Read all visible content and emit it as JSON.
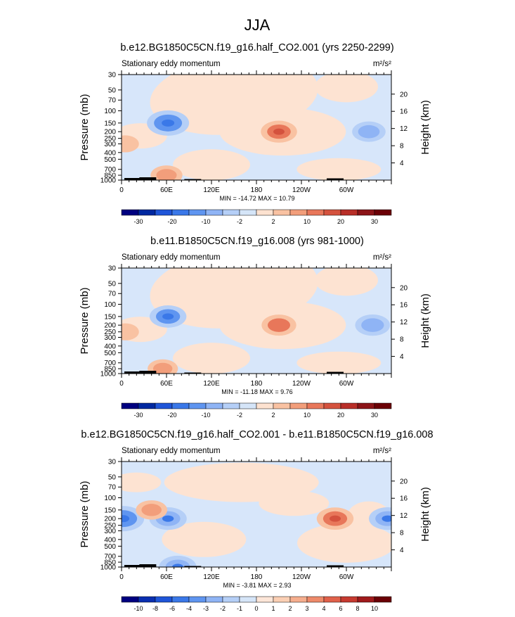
{
  "page_title": "JJA",
  "chart_data": [
    {
      "type": "heatmap",
      "title": "b.e12.BG1850C5CN.f19_g16.half_CO2.001 (yrs 2250-2299)",
      "subtitle": "Stationary eddy momentum",
      "units": "m²/s²",
      "ylabel": "Pressure (mb)",
      "ylabel_right": "Height (km)",
      "x_ticks": [
        "0",
        "60E",
        "120E",
        "180",
        "120W",
        "60W"
      ],
      "y_ticks": [
        "30",
        "50",
        "70",
        "100",
        "150",
        "200",
        "250",
        "300",
        "400",
        "500",
        "700",
        "850",
        "1000"
      ],
      "y_ticks_right": [
        "20",
        "16",
        "12",
        "8",
        "4"
      ],
      "stats_text": "MIN = -14.72  MAX =  10.79",
      "colorbar_labels": [
        "-30",
        "-20",
        "-10",
        "-2",
        "2",
        "10",
        "20",
        "30"
      ],
      "features": [
        {
          "lon": 62,
          "p": 150,
          "value": -14.7
        },
        {
          "lon": 330,
          "p": 200,
          "value": -9
        },
        {
          "lon": 210,
          "p": 200,
          "value": 10.8
        },
        {
          "lon": 5,
          "p": 300,
          "value": 5
        },
        {
          "lon": 60,
          "p": 850,
          "value": 8
        }
      ]
    },
    {
      "type": "heatmap",
      "title": "b.e11.B1850C5CN.f19_g16.008 (yrs 981-1000)",
      "subtitle": "Stationary eddy momentum",
      "units": "m²/s²",
      "ylabel": "Pressure (mb)",
      "ylabel_right": "Height (km)",
      "x_ticks": [
        "0",
        "60E",
        "120E",
        "180",
        "120W",
        "60W"
      ],
      "y_ticks": [
        "30",
        "50",
        "70",
        "100",
        "150",
        "200",
        "250",
        "300",
        "400",
        "500",
        "700",
        "850",
        "1000"
      ],
      "y_ticks_right": [
        "20",
        "16",
        "12",
        "8",
        "4"
      ],
      "stats_text": "MIN = -11.18  MAX =   9.76",
      "colorbar_labels": [
        "-30",
        "-20",
        "-10",
        "-2",
        "2",
        "10",
        "20",
        "30"
      ],
      "features": [
        {
          "lon": 62,
          "p": 150,
          "value": -11.2
        },
        {
          "lon": 335,
          "p": 200,
          "value": -10
        },
        {
          "lon": 210,
          "p": 200,
          "value": 9.8
        },
        {
          "lon": 5,
          "p": 250,
          "value": 5
        },
        {
          "lon": 55,
          "p": 850,
          "value": 7
        }
      ]
    },
    {
      "type": "heatmap",
      "title": "b.e12.BG1850C5CN.f19_g16.half_CO2.001 - b.e11.B1850C5CN.f19_g16.008",
      "subtitle": "Stationary eddy momentum",
      "units": "m²/s²",
      "ylabel": "Pressure (mb)",
      "ylabel_right": "Height (km)",
      "x_ticks": [
        "0",
        "60E",
        "120E",
        "180",
        "120W",
        "60W"
      ],
      "y_ticks": [
        "30",
        "50",
        "70",
        "100",
        "150",
        "200",
        "250",
        "300",
        "400",
        "500",
        "700",
        "850",
        "1000"
      ],
      "y_ticks_right": [
        "20",
        "16",
        "12",
        "8",
        "4"
      ],
      "stats_text": "MIN =  -3.81  MAX =   2.93",
      "colorbar_labels": [
        "-10",
        "-8",
        "-6",
        "-4",
        "-3",
        "-2",
        "-1",
        "0",
        "1",
        "2",
        "3",
        "4",
        "6",
        "8",
        "10"
      ],
      "features": [
        {
          "lon": 2,
          "p": 200,
          "value": -3.8
        },
        {
          "lon": 62,
          "p": 200,
          "value": -3
        },
        {
          "lon": 355,
          "p": 200,
          "value": -3
        },
        {
          "lon": 285,
          "p": 200,
          "value": 2.9
        },
        {
          "lon": 40,
          "p": 150,
          "value": 2
        },
        {
          "lon": 75,
          "p": 1000,
          "value": -3
        }
      ]
    }
  ],
  "colors": {
    "colorbar_main": [
      "#000080",
      "#0028a0",
      "#1f55d8",
      "#3a78e8",
      "#5f95f0",
      "#8fb4f5",
      "#b5cff7",
      "#d5e5f8",
      "#fde2d0",
      "#f9c2a2",
      "#f29e7b",
      "#e8775a",
      "#d4523e",
      "#b82e28",
      "#8c1418",
      "#6b0006"
    ],
    "colorbar_diff": [
      "#000080",
      "#0a2fb0",
      "#1f55d8",
      "#3a78e8",
      "#5f95f0",
      "#8fb4f5",
      "#b5cff7",
      "#d5e5f8",
      "#fde6d8",
      "#fbcfb4",
      "#f6ae8e",
      "#ee8a6a",
      "#e0614a",
      "#c63a30",
      "#a01a1c",
      "#6b0006"
    ],
    "light_blue": "#d7e6fa",
    "light_red": "#fde3d2",
    "topography": "#000000"
  }
}
